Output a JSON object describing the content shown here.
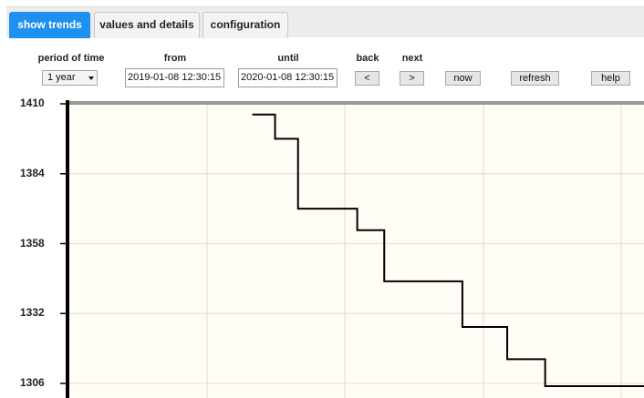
{
  "tabs": [
    {
      "label": "show trends",
      "active": true
    },
    {
      "label": "values and details",
      "active": false
    },
    {
      "label": "configuration",
      "active": false
    }
  ],
  "controls": {
    "period_label": "period of time",
    "period_value": "1 year",
    "from_label": "from",
    "from_value": "2019-01-08 12:30:15",
    "until_label": "until",
    "until_value": "2020-01-08 12:30:15",
    "back_label": "back",
    "back_button": "<",
    "next_label": "next",
    "next_button": ">",
    "now_button": "now",
    "refresh_button": "refresh",
    "help_button": "help"
  },
  "colors": {
    "active_tab": "#1e90f0",
    "plot_background": "#fffdf6",
    "series": "#000000"
  },
  "chart_data": {
    "type": "line",
    "step": true,
    "y_ticks": [
      "1410",
      "1384",
      "1358",
      "1332",
      "1306"
    ],
    "ylim": [
      1306,
      1410
    ],
    "xlim": [
      0,
      100
    ],
    "grid": true,
    "series": [
      {
        "x": [
          35.8,
          39.8,
          50.1,
          54.8,
          68.4,
          76.2,
          82.8,
          87.7,
          100
        ],
        "y": [
          1406,
          1397,
          1371,
          1363,
          1344,
          1327,
          1315,
          1305,
          1305
        ]
      }
    ]
  }
}
